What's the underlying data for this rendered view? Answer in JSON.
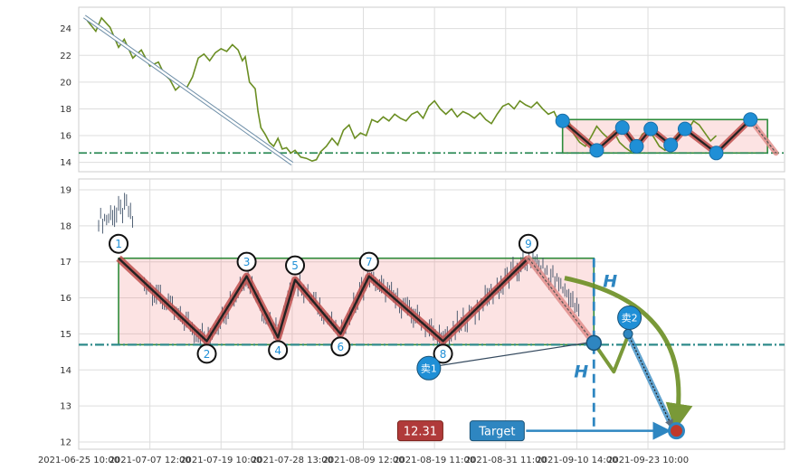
{
  "chart_data": [
    {
      "type": "line",
      "panel": "top",
      "ylim": [
        13.3,
        25.6
      ],
      "yticks": [
        14,
        16,
        18,
        20,
        22,
        24
      ],
      "series": [
        {
          "color": "#6b8e23",
          "points": [
            [
              0.3,
              24.6
            ],
            [
              0.6,
              23.8
            ],
            [
              0.8,
              24.8
            ],
            [
              1.1,
              24.1
            ],
            [
              1.4,
              22.6
            ],
            [
              1.6,
              23.2
            ],
            [
              1.9,
              21.8
            ],
            [
              2.2,
              22.4
            ],
            [
              2.5,
              21.2
            ],
            [
              2.8,
              21.5
            ],
            [
              3.0,
              20.6
            ],
            [
              3.2,
              20.2
            ],
            [
              3.4,
              19.4
            ],
            [
              3.6,
              19.8
            ],
            [
              3.8,
              19.6
            ],
            [
              4.0,
              20.4
            ],
            [
              4.2,
              21.8
            ],
            [
              4.4,
              22.1
            ],
            [
              4.6,
              21.6
            ],
            [
              4.8,
              22.2
            ],
            [
              5.0,
              22.5
            ],
            [
              5.2,
              22.3
            ],
            [
              5.4,
              22.8
            ],
            [
              5.6,
              22.4
            ],
            [
              5.75,
              21.6
            ],
            [
              5.85,
              21.9
            ],
            [
              6.0,
              20.0
            ],
            [
              6.2,
              19.5
            ],
            [
              6.3,
              17.8
            ],
            [
              6.4,
              16.6
            ],
            [
              6.55,
              16.1
            ],
            [
              6.7,
              15.5
            ],
            [
              6.85,
              15.2
            ],
            [
              7.0,
              15.8
            ],
            [
              7.15,
              15.0
            ],
            [
              7.3,
              15.1
            ],
            [
              7.45,
              14.7
            ],
            [
              7.6,
              14.9
            ],
            [
              7.8,
              14.4
            ],
            [
              8.0,
              14.3
            ],
            [
              8.2,
              14.1
            ],
            [
              8.35,
              14.2
            ],
            [
              8.5,
              14.8
            ],
            [
              8.7,
              15.2
            ],
            [
              8.9,
              15.8
            ],
            [
              9.1,
              15.3
            ],
            [
              9.3,
              16.4
            ],
            [
              9.5,
              16.8
            ],
            [
              9.7,
              15.8
            ],
            [
              9.9,
              16.2
            ],
            [
              10.1,
              16.0
            ],
            [
              10.3,
              17.2
            ],
            [
              10.5,
              17.0
            ],
            [
              10.7,
              17.4
            ],
            [
              10.9,
              17.1
            ],
            [
              11.1,
              17.6
            ],
            [
              11.3,
              17.3
            ],
            [
              11.5,
              17.1
            ],
            [
              11.7,
              17.6
            ],
            [
              11.9,
              17.8
            ],
            [
              12.1,
              17.3
            ],
            [
              12.3,
              18.2
            ],
            [
              12.5,
              18.6
            ],
            [
              12.7,
              18.0
            ],
            [
              12.9,
              17.6
            ],
            [
              13.1,
              18.0
            ],
            [
              13.3,
              17.4
            ],
            [
              13.5,
              17.8
            ],
            [
              13.7,
              17.6
            ],
            [
              13.9,
              17.3
            ],
            [
              14.1,
              17.7
            ],
            [
              14.3,
              17.2
            ],
            [
              14.5,
              16.9
            ],
            [
              14.7,
              17.6
            ],
            [
              14.9,
              18.2
            ],
            [
              15.1,
              18.4
            ],
            [
              15.3,
              18.0
            ],
            [
              15.5,
              18.6
            ],
            [
              15.7,
              18.3
            ],
            [
              15.9,
              18.1
            ],
            [
              16.1,
              18.5
            ],
            [
              16.3,
              18.0
            ],
            [
              16.5,
              17.6
            ],
            [
              16.7,
              17.8
            ],
            [
              16.85,
              17.1
            ],
            [
              17.0,
              16.8
            ],
            [
              17.2,
              17.2
            ],
            [
              17.4,
              16.1
            ],
            [
              17.6,
              15.5
            ],
            [
              17.8,
              15.2
            ],
            [
              18.0,
              15.9
            ],
            [
              18.2,
              16.7
            ],
            [
              18.4,
              16.2
            ],
            [
              18.6,
              15.8
            ],
            [
              18.8,
              16.3
            ],
            [
              19.0,
              15.5
            ],
            [
              19.2,
              15.1
            ],
            [
              19.4,
              14.8
            ],
            [
              19.6,
              15.3
            ],
            [
              19.8,
              16.1
            ],
            [
              20.0,
              16.4
            ],
            [
              20.2,
              15.9
            ],
            [
              20.4,
              15.2
            ],
            [
              20.6,
              14.9
            ],
            [
              20.8,
              15.4
            ],
            [
              21.0,
              16.0
            ],
            [
              21.2,
              16.6
            ],
            [
              21.4,
              16.4
            ],
            [
              21.6,
              17.1
            ],
            [
              21.8,
              16.8
            ],
            [
              22.0,
              16.2
            ],
            [
              22.2,
              15.6
            ],
            [
              22.4,
              16.0
            ]
          ]
        }
      ],
      "pattern_points": [
        [
          17.0,
          17.1
        ],
        [
          18.2,
          14.9
        ],
        [
          19.1,
          16.6
        ],
        [
          19.6,
          15.2
        ],
        [
          20.1,
          16.5
        ],
        [
          20.8,
          15.3
        ],
        [
          21.3,
          16.5
        ],
        [
          22.4,
          14.7
        ],
        [
          23.6,
          17.2
        ]
      ],
      "pattern_end": [
        24.5,
        14.7
      ],
      "arrow_start": [
        0.2,
        24.9
      ],
      "arrow_end": [
        7.5,
        13.9
      ],
      "support_level": 14.7,
      "box": {
        "x": [
          17.0,
          24.2
        ],
        "y": [
          14.7,
          17.2
        ]
      }
    },
    {
      "type": "candlestick",
      "panel": "bottom",
      "ylim": [
        11.8,
        19.3
      ],
      "yticks": [
        12,
        13,
        14,
        15,
        16,
        17,
        18,
        19
      ],
      "xlim": [
        0,
        24.8
      ],
      "xticks": [
        {
          "x": 0.0,
          "label": "2021-06-25 10:00"
        },
        {
          "x": 2.5,
          "label": "2021-07-07 12:00"
        },
        {
          "x": 5.0,
          "label": "2021-07-19 10:00"
        },
        {
          "x": 7.5,
          "label": "2021-07-28 13:00"
        },
        {
          "x": 10.0,
          "label": "2021-08-09 12:00"
        },
        {
          "x": 12.5,
          "label": "2021-08-19 11:00"
        },
        {
          "x": 15.0,
          "label": "2021-08-31 11:00"
        },
        {
          "x": 17.5,
          "label": "2021-09-10 14:00"
        },
        {
          "x": 20.0,
          "label": "2021-09-23 10:00"
        }
      ],
      "pattern_points": [
        {
          "label": "1",
          "x": 1.4,
          "y": 17.1
        },
        {
          "label": "2",
          "x": 4.5,
          "y": 14.8
        },
        {
          "label": "3",
          "x": 5.9,
          "y": 16.6
        },
        {
          "label": "4",
          "x": 7.0,
          "y": 14.9
        },
        {
          "label": "5",
          "x": 7.6,
          "y": 16.5
        },
        {
          "label": "6",
          "x": 9.2,
          "y": 15.0
        },
        {
          "label": "7",
          "x": 10.2,
          "y": 16.6
        },
        {
          "label": "8",
          "x": 12.8,
          "y": 14.8
        },
        {
          "label": "9",
          "x": 15.8,
          "y": 17.1
        }
      ],
      "pattern_end": [
        18.1,
        14.75
      ],
      "support_level": 14.7,
      "resistance_level": 17.1,
      "box": {
        "x": [
          1.4,
          18.1
        ],
        "y": [
          14.7,
          17.1
        ]
      },
      "h_label": "H",
      "sell_points": [
        {
          "label": "卖1",
          "x": 18.1,
          "y": 14.75
        },
        {
          "label": "卖2",
          "x": 19.3,
          "y": 15.0
        }
      ],
      "projection_path": [
        [
          18.1,
          14.75
        ],
        [
          18.8,
          13.95
        ],
        [
          19.3,
          14.95
        ]
      ],
      "target": {
        "x": 21.0,
        "y": 12.31,
        "value": "12.31",
        "label": "Target"
      }
    }
  ]
}
